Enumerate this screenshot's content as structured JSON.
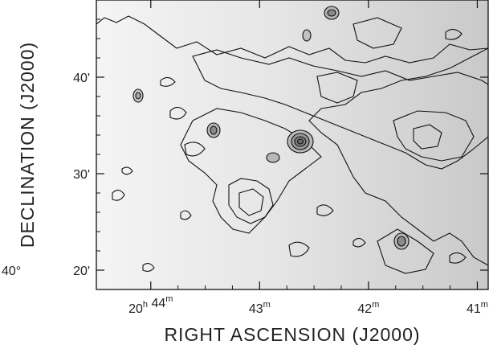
{
  "chart_data": {
    "type": "heatmap",
    "subtype": "contour-map",
    "xlabel": "RIGHT ASCENSION (J2000)",
    "ylabel": "DECLINATION (J2000)",
    "xlim_minutes": [
      44.5,
      40.9
    ],
    "ylim_arcmin": [
      18,
      48
    ],
    "x_ticks": [
      {
        "h": "20",
        "hu": "h",
        "m": "44",
        "mu": "m",
        "value": 44
      },
      {
        "h": "",
        "hu": "",
        "m": "43",
        "mu": "m",
        "value": 43
      },
      {
        "h": "",
        "hu": "",
        "m": "42",
        "mu": "m",
        "value": 42
      },
      {
        "h": "",
        "hu": "",
        "m": "41",
        "mu": "m",
        "value": 41
      }
    ],
    "y_ticks": [
      {
        "deg": "40°",
        "label": "20'",
        "value": 20
      },
      {
        "deg": "",
        "label": "30'",
        "value": 30
      },
      {
        "deg": "",
        "label": "40'",
        "value": 40
      }
    ],
    "colors": {
      "background_light": "#f2f2f2",
      "level1": "#d9d9d9",
      "level2": "#b5b5b5",
      "level3": "#9a9a9a",
      "level4": "#7e7e7e",
      "contour_line": "#111111"
    },
    "grid": false,
    "legend": "none"
  }
}
